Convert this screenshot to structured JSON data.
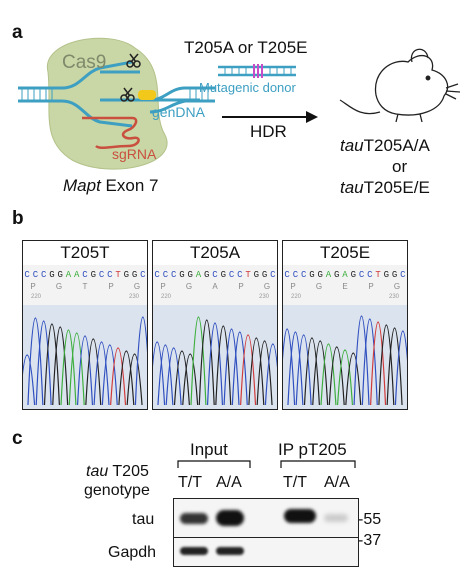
{
  "panel_a": {
    "letter": "a",
    "cas9_label": "Cas9",
    "gendna_label": "genDNA",
    "sgrna_label": "sgRNA",
    "exon_label_italic": "Mapt",
    "exon_label_rest": " Exon 7",
    "donor_title": "T205A or T205E",
    "donor_label": "Mutagenic donor",
    "arrow_label": "HDR",
    "result_line1_italic": "tau",
    "result_line1_rest": "T205A/A",
    "result_or": "or",
    "result_line2_italic": "tau",
    "result_line2_rest": "T205E/E",
    "colors": {
      "cas9_blob": "#c9d6a5",
      "dna": "#3d9fc2",
      "sgrna": "#c9503f",
      "highlight": "#f2c81a",
      "mutation": "#c84bc8"
    }
  },
  "panel_b": {
    "letter": "b",
    "tracks": [
      {
        "title": "T205T",
        "bases": [
          "C",
          "C",
          "C",
          "G",
          "G",
          "A",
          "A",
          "C",
          "G",
          "C",
          "C",
          "T",
          "G",
          "G",
          "C"
        ],
        "aa": [
          "P",
          "G",
          "T",
          "P",
          "G"
        ],
        "pos_left": "220",
        "pos_right": "230"
      },
      {
        "title": "T205A",
        "bases": [
          "C",
          "C",
          "C",
          "G",
          "G",
          "A",
          "G",
          "C",
          "G",
          "C",
          "C",
          "T",
          "G",
          "G",
          "C"
        ],
        "aa": [
          "P",
          "G",
          "A",
          "P",
          "G"
        ],
        "pos_left": "220",
        "pos_right": "230"
      },
      {
        "title": "T205E",
        "bases": [
          "C",
          "C",
          "C",
          "G",
          "G",
          "A",
          "G",
          "A",
          "G",
          "C",
          "C",
          "T",
          "G",
          "G",
          "C"
        ],
        "aa": [
          "P",
          "G",
          "E",
          "P",
          "G"
        ],
        "pos_left": "220",
        "pos_right": "230"
      }
    ],
    "base_colors": {
      "A": "#3cae3c",
      "C": "#2f4fc0",
      "G": "#222222",
      "T": "#d03a3a"
    }
  },
  "panel_c": {
    "letter": "c",
    "group_input": "Input",
    "group_ip": "IP pT205",
    "genotype_label_italic": "tau",
    "genotype_label_rest": " T205",
    "genotype_label_line2": "genotype",
    "lanes": [
      "T/T",
      "A/A",
      "T/T",
      "A/A"
    ],
    "rows": [
      "tau",
      "Gapdh"
    ],
    "markers": [
      "-55",
      "-37"
    ]
  }
}
